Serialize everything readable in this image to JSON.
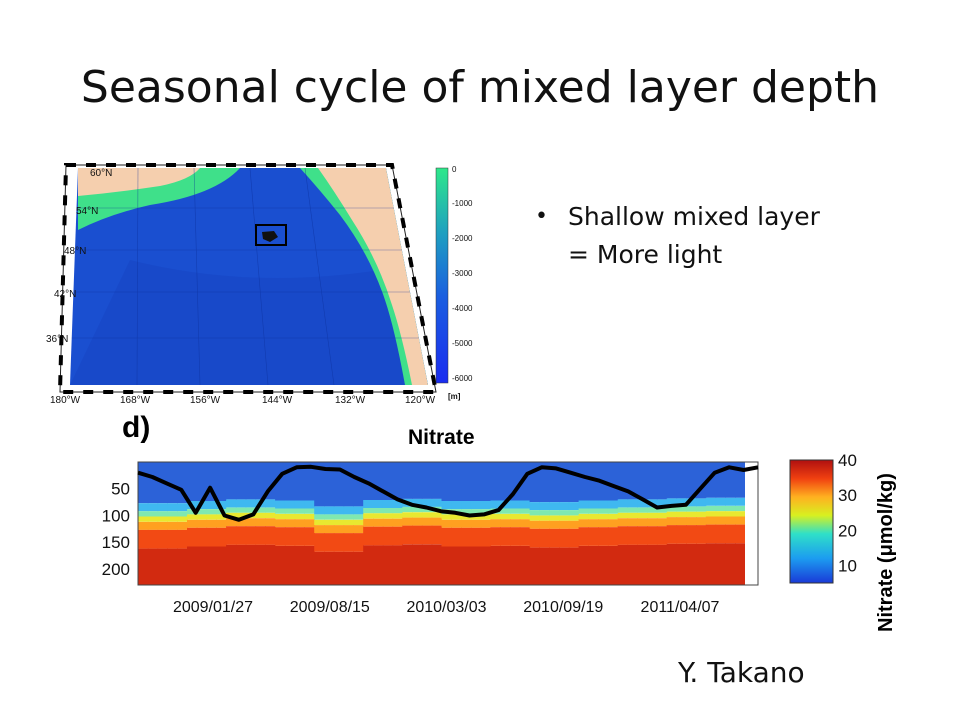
{
  "slide": {
    "title": "Seasonal cycle of mixed layer depth",
    "bullets": [
      "Shallow mixed layer",
      "= More light"
    ],
    "credit": "Y. Takano"
  },
  "map": {
    "lat_labels": [
      "60°N",
      "54°N",
      "48°N",
      "42°N",
      "36°N"
    ],
    "lon_labels": [
      "180°W",
      "168°W",
      "156°W",
      "144°W",
      "132°W",
      "120°W"
    ],
    "colorbar_ticks": [
      "0",
      "-1000",
      "-2000",
      "-3000",
      "-4000",
      "-5000",
      "-6000"
    ],
    "colorbar_unit": "[m]",
    "colors": {
      "land": "#f5cfae",
      "shelf": "#3fe08a",
      "ocean": "#1a4fd0",
      "deep": "#1238b8"
    }
  },
  "chart_data": {
    "type": "heatmap",
    "panel_label": "d)",
    "title": "Nitrate",
    "xlabel": "",
    "ylabel": "",
    "y_ticks": [
      50,
      100,
      150,
      200
    ],
    "ylim": [
      0,
      230
    ],
    "x_ticks": [
      "2009/01/27",
      "2009/08/15",
      "2010/03/03",
      "2010/09/19",
      "2011/04/07"
    ],
    "colorbar": {
      "label": "Nitrate (μmol/kg)",
      "ticks": [
        10,
        20,
        30,
        40
      ],
      "range": [
        5,
        40
      ]
    },
    "nitracline_depth_m": [
      112,
      108,
      105,
      107,
      118,
      106,
      104,
      108,
      107,
      110,
      107,
      105,
      103,
      102
    ],
    "mixed_layer_depth_m": [
      20,
      28,
      40,
      52,
      95,
      48,
      100,
      108,
      98,
      55,
      22,
      10,
      9,
      13,
      14,
      28,
      40,
      55,
      70,
      80,
      85,
      92,
      95,
      100,
      98,
      90,
      60,
      22,
      10,
      12,
      20,
      28,
      35,
      45,
      55,
      70,
      85,
      82,
      80,
      50,
      20,
      10,
      15,
      10
    ]
  }
}
